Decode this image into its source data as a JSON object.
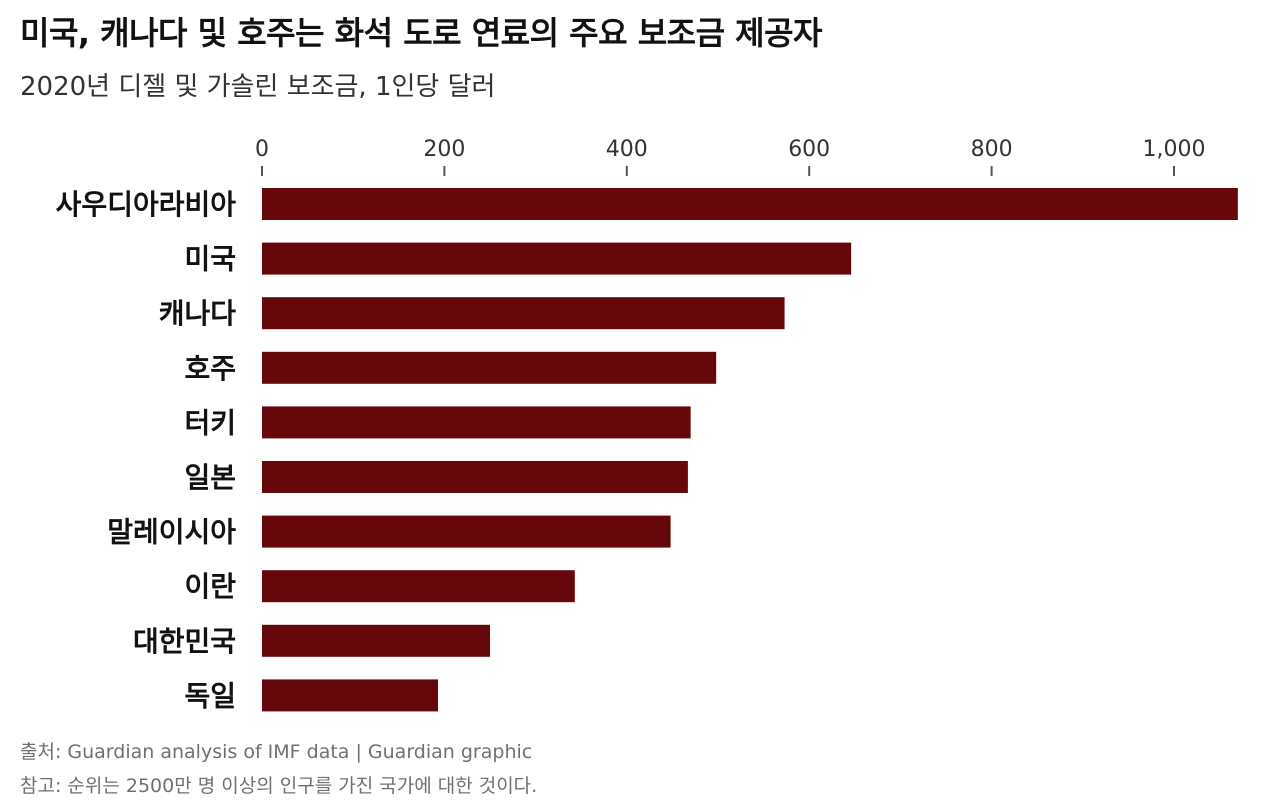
{
  "title": "미국, 캐나다 및 호주는 화석 도로 연료의 주요 보조금 제공자",
  "subtitle": "2020년 디젤 및 가솔린 보조금, 1인당 달러",
  "source": "출처: Guardian analysis of IMF data | Guardian graphic",
  "note": "참고: 순위는 2500만 명 이상의 인구를 가진 국가에 대한 것이다.",
  "bar_color": "#65070b",
  "chart_data": {
    "type": "bar",
    "orientation": "horizontal",
    "title": "미국, 캐나다 및 호주는 화석 도로 연료의 주요 보조금 제공자",
    "subtitle": "2020년 디젤 및 가솔린 보조금, 1인당 달러",
    "categories": [
      "사우디아라비아",
      "미국",
      "캐나다",
      "호주",
      "터키",
      "일본",
      "말레이시아",
      "이란",
      "대한민국",
      "독일"
    ],
    "values": [
      1070,
      646,
      573,
      498,
      470,
      467,
      448,
      343,
      250,
      193
    ],
    "xticks": [
      0,
      200,
      400,
      600,
      800,
      1000
    ],
    "xtick_labels": [
      "0",
      "200",
      "400",
      "600",
      "800",
      "1,000"
    ],
    "xlim": [
      0,
      1070
    ],
    "axis_position": "top",
    "grid": false,
    "legend": "none"
  }
}
